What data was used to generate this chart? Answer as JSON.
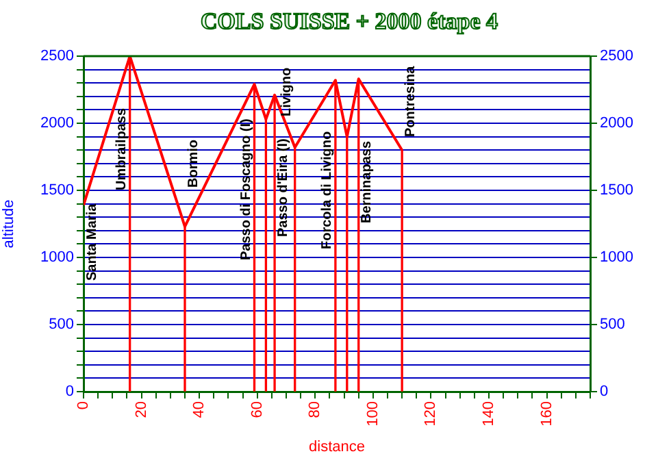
{
  "chart_data": {
    "type": "line",
    "title": "COLS SUISSE + 2000 étape 4",
    "xlabel": "distance",
    "ylabel": "altitude",
    "series": [
      {
        "color": "#ff0000",
        "x": [
          0,
          16,
          35,
          59,
          63,
          66,
          73,
          87,
          91,
          95,
          110
        ],
        "values": [
          1390,
          2500,
          1230,
          2290,
          2030,
          2210,
          1820,
          2320,
          1900,
          2330,
          1800
        ]
      },
      {
        "type": "bar",
        "color": "#ff0000",
        "x": [
          16,
          35,
          59,
          63,
          66,
          73,
          87,
          91,
          95,
          110
        ],
        "values": [
          2500,
          1230,
          2290,
          2030,
          2210,
          1820,
          2320,
          1900,
          2330,
          1800
        ]
      }
    ],
    "annotations": [
      "Santa Maria",
      "Umbrailpass",
      "Bormio",
      "Passo di Foscagno (I)",
      "Passo d'Eira (I)",
      "Livigno",
      "Forcola di Livigno",
      "Berninapass",
      "Pontresina"
    ],
    "xlim": [
      0,
      175
    ],
    "xticks": [
      0,
      {
        "value": 5,
        "label": null
      },
      {
        "value": 10,
        "label": null
      },
      {
        "value": 15,
        "label": null
      },
      20,
      {
        "value": 25,
        "label": null
      },
      {
        "value": 30,
        "label": null
      },
      {
        "value": 35,
        "label": null
      },
      40,
      {
        "value": 45,
        "label": null
      },
      {
        "value": 50,
        "label": null
      },
      {
        "value": 55,
        "label": null
      },
      60,
      {
        "value": 65,
        "label": null
      },
      {
        "value": 70,
        "label": null
      },
      {
        "value": 75,
        "label": null
      },
      80,
      {
        "value": 85,
        "label": null
      },
      {
        "value": 90,
        "label": null
      },
      {
        "value": 95,
        "label": null
      },
      100,
      {
        "value": 105,
        "label": null
      },
      {
        "value": 110,
        "label": null
      },
      {
        "value": 115,
        "label": null
      },
      120,
      {
        "value": 125,
        "label": null
      },
      {
        "value": 130,
        "label": null
      },
      {
        "value": 135,
        "label": null
      },
      140,
      {
        "value": 145,
        "label": null
      },
      {
        "value": 150,
        "label": null
      },
      {
        "value": 155,
        "label": null
      },
      160,
      {
        "value": 165,
        "label": null
      },
      {
        "value": 170,
        "label": null
      },
      {
        "value": 175,
        "label": null
      }
    ],
    "ylim": [
      0,
      2500
    ],
    "yticks": [
      0,
      {
        "value": 100,
        "label": null
      },
      {
        "value": 200,
        "label": null
      },
      {
        "value": 300,
        "label": null
      },
      {
        "value": 400,
        "label": null
      },
      500,
      {
        "value": 600,
        "label": null
      },
      {
        "value": 700,
        "label": null
      },
      {
        "value": 800,
        "label": null
      },
      {
        "value": 900,
        "label": null
      },
      1000,
      {
        "value": 1100,
        "label": null
      },
      {
        "value": 1200,
        "label": null
      },
      {
        "value": 1300,
        "label": null
      },
      {
        "value": 1400,
        "label": null
      },
      1500,
      {
        "value": 1600,
        "label": null
      },
      {
        "value": 1700,
        "label": null
      },
      {
        "value": 1800,
        "label": null
      },
      {
        "value": 1900,
        "label": null
      },
      2000,
      {
        "value": 2100,
        "label": null
      },
      {
        "value": 2200,
        "label": null
      },
      {
        "value": 2300,
        "label": null
      },
      {
        "value": 2400,
        "label": null
      },
      2500
    ],
    "y2lim": [
      0,
      2500
    ],
    "y2ticks": [
      0,
      500,
      1000,
      1500,
      2000,
      2500
    ],
    "grid": "y",
    "legend": false,
    "marker": "none",
    "line_style": "solid"
  }
}
